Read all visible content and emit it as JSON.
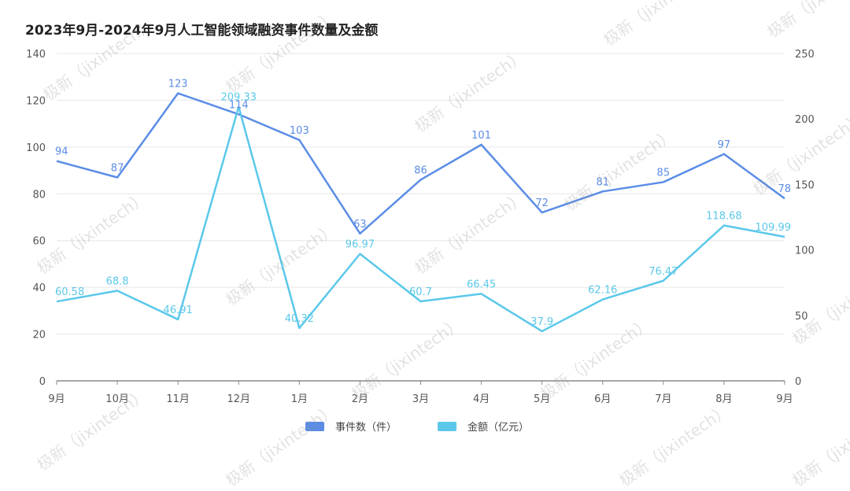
{
  "title": "2023年9月-2024年9月人工智能领域融资事件数量及金额",
  "watermark_text": "极新（jixintech）",
  "chart_data": {
    "type": "line",
    "categories": [
      "9月",
      "10月",
      "11月",
      "12月",
      "1月",
      "2月",
      "3月",
      "4月",
      "5月",
      "6月",
      "7月",
      "8月",
      "9月"
    ],
    "y_left": {
      "range": [
        0,
        140
      ],
      "ticks": [
        "0",
        "20",
        "40",
        "60",
        "80",
        "100",
        "120",
        "140"
      ]
    },
    "y_right": {
      "range": [
        0,
        250
      ],
      "ticks": [
        "0",
        "50",
        "100",
        "150",
        "200",
        "250"
      ]
    },
    "series": [
      {
        "name": "事件数（件）",
        "axis": "left",
        "color": "#5b8de6",
        "values": [
          94,
          87,
          123,
          114,
          103,
          63,
          86,
          101,
          72,
          81,
          85,
          97,
          78
        ]
      },
      {
        "name": "金额（亿元）",
        "axis": "right",
        "color": "#5bc8ea",
        "values": [
          60.58,
          68.8,
          46.91,
          209.33,
          40.32,
          96.97,
          60.7,
          66.45,
          37.9,
          62.16,
          76.47,
          118.68,
          109.99
        ]
      }
    ],
    "grid": true,
    "legend": "bottom-center"
  }
}
